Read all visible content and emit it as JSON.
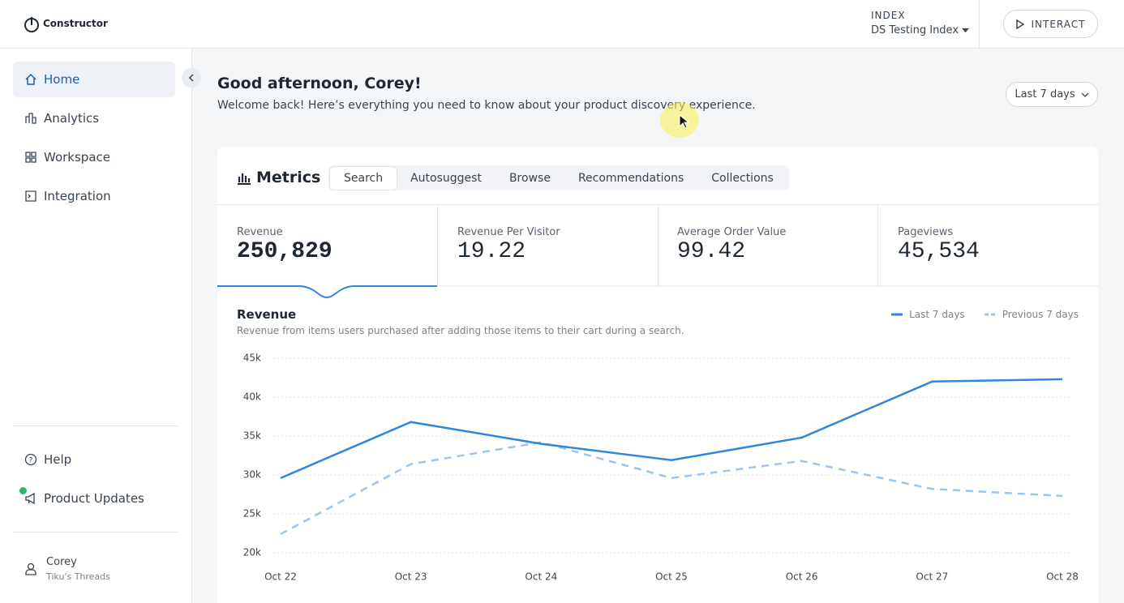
{
  "header": {
    "logo": "Constructor",
    "index_label": "INDEX",
    "index_name": "DS Testing Index",
    "button": "INTERACT"
  },
  "sidebar": {
    "nav": [
      "Home",
      "Analytics",
      "Workspace",
      "Integration"
    ],
    "bottom": [
      "Help",
      "Product Updates"
    ],
    "user": {
      "name": "Corey",
      "org": "Tiku's Threads"
    }
  },
  "main": {
    "greeting": "Good afternoon, Corey!",
    "subtitle": "Welcome back! Here’s everything you need to know about your product discovery experience.",
    "date_range": "Last 7 days"
  },
  "metrics": {
    "title": "Metrics",
    "tabs": [
      "Search",
      "Autosuggest",
      "Browse",
      "Recommendations",
      "Collections"
    ],
    "kpis": [
      {
        "label": "Revenue",
        "value": "250,829"
      },
      {
        "label": "Revenue Per Visitor",
        "value": "19.22"
      },
      {
        "label": "Average Order Value",
        "value": "99.42"
      },
      {
        "label": "Pageviews",
        "value": "45,534"
      }
    ]
  },
  "chart_data": {
    "type": "line",
    "title": "Revenue",
    "subtitle": "Revenue from items users purchased after adding those items to their cart during a search.",
    "categories": [
      "Oct 22",
      "Oct 23",
      "Oct 24",
      "Oct 25",
      "Oct 26",
      "Oct 27",
      "Oct 28"
    ],
    "series": [
      {
        "name": "Last 7 days",
        "color": "#2f86dd",
        "style": "solid",
        "values": [
          29600,
          36800,
          34000,
          31900,
          34800,
          42000,
          42300
        ]
      },
      {
        "name": "Previous 7 days",
        "color": "#9cc4ee",
        "style": "dashed",
        "values": [
          22400,
          31400,
          34200,
          29600,
          31800,
          28200,
          27300
        ]
      }
    ],
    "ylim": [
      20000,
      45000
    ],
    "yticks": [
      {
        "value": 20000,
        "label": "20k"
      },
      {
        "value": 25000,
        "label": "25k"
      },
      {
        "value": 30000,
        "label": "30k"
      },
      {
        "value": 35000,
        "label": "35k"
      },
      {
        "value": 40000,
        "label": "40k"
      },
      {
        "value": 45000,
        "label": "45k"
      }
    ],
    "grid": true
  }
}
